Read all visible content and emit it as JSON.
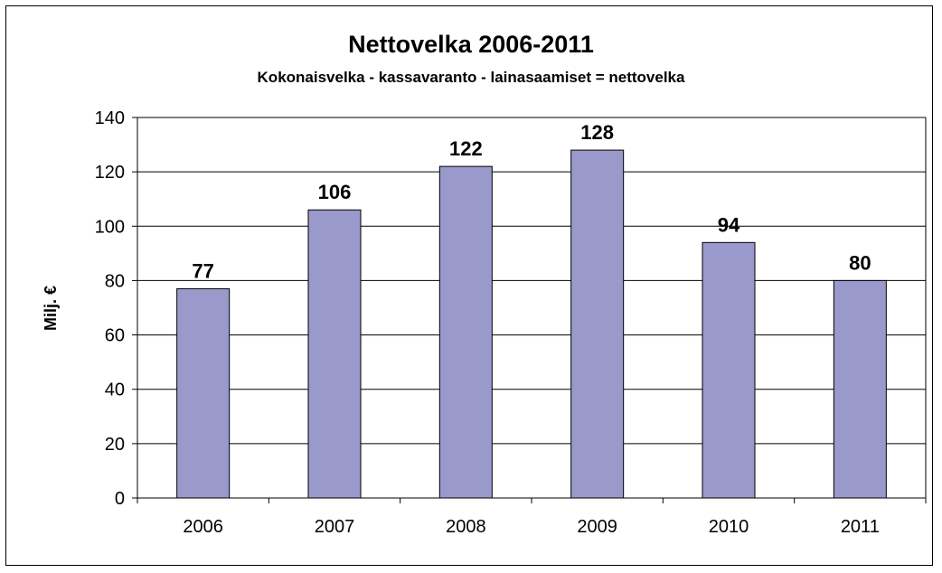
{
  "chart_data": {
    "type": "bar",
    "title": "Nettovelka 2006-2011",
    "subtitle": "Kokonaisvelka - kassavaranto - lainasaamiset = nettovelka",
    "ylabel": "Milj. €",
    "xlabel": "",
    "categories": [
      "2006",
      "2007",
      "2008",
      "2009",
      "2010",
      "2011"
    ],
    "values": [
      77,
      106,
      122,
      128,
      94,
      80
    ],
    "ylim": [
      0,
      140
    ],
    "yticks": [
      "0",
      "20",
      "40",
      "60",
      "80",
      "100",
      "120",
      "140"
    ],
    "grid": true,
    "legend": "none",
    "colors": {
      "bar": "#9999cc",
      "bar_border": "#000000",
      "grid": "#000000"
    }
  }
}
